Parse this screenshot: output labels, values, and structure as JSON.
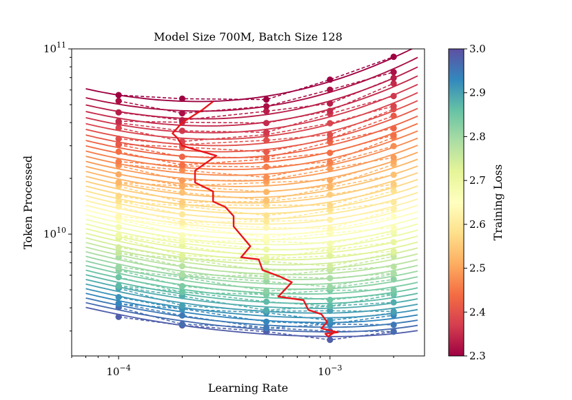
{
  "chart_data": {
    "type": "line",
    "title": "Model Size 700M, Batch Size 128",
    "xlabel": "Learning Rate",
    "ylabel": "Token Processed",
    "xscale": "log",
    "yscale": "log",
    "xlim": [
      6e-05,
      0.0028
    ],
    "ylim": [
      2200000000.0,
      100000000000.0
    ],
    "xticks": [
      {
        "value": 0.0001,
        "base": "10",
        "exp": "−4"
      },
      {
        "value": 0.001,
        "base": "10",
        "exp": "−3"
      }
    ],
    "yticks": [
      {
        "value": 10000000000.0,
        "base": "10",
        "exp": "10"
      },
      {
        "value": 100000000000.0,
        "base": "10",
        "exp": "11"
      }
    ],
    "measured_lr": [
      0.0001,
      0.0002,
      0.0005,
      0.001,
      0.002
    ],
    "curves": {
      "count": 44,
      "loss_range": [
        2.3,
        2.98
      ],
      "token_range_at_min": [
        52000000000.0,
        2800000000.0
      ],
      "lr_optimum_range": [
        0.00024,
        0.0011
      ],
      "fit_lr_range": [
        7e-05,
        0.0026
      ],
      "solid": "fitted loss contours",
      "dashed": "measured loss contours"
    },
    "optimal_path": {
      "color": "#e8151b",
      "lr": [
        0.00028,
        0.00025,
        0.0002,
        0.00018,
        0.00019,
        0.0002,
        0.00029,
        0.00023,
        0.00023,
        0.00028,
        0.00028,
        0.00032,
        0.00035,
        0.00035,
        0.00042,
        0.00038,
        0.00046,
        0.00048,
        0.00058,
        0.00066,
        0.00057,
        0.00075,
        0.00079,
        0.00091,
        0.00097,
        0.00091,
        0.00109,
        0.00095,
        0.00098,
        0.00105
      ],
      "tokens": [
        52000000000.0,
        47000000000.0,
        40000000000.0,
        35000000000.0,
        33000000000.0,
        30000000000.0,
        26500000000.0,
        22000000000.0,
        19000000000.0,
        17000000000.0,
        15000000000.0,
        14000000000.0,
        12500000000.0,
        11000000000.0,
        8600000000.0,
        7500000000.0,
        7300000000.0,
        6400000000.0,
        5900000000.0,
        5500000000.0,
        4600000000.0,
        4400000000.0,
        3900000000.0,
        3700000000.0,
        3350000000.0,
        3100000000.0,
        2950000000.0,
        2900000000.0,
        2800000000.0,
        2950000000.0
      ]
    },
    "colorbar": {
      "label": "Training Loss",
      "colormap": "Spectral",
      "range": [
        2.3,
        3.0
      ],
      "ticks": [
        {
          "value": 2.3,
          "label": "2.3"
        },
        {
          "value": 2.4,
          "label": "2.4"
        },
        {
          "value": 2.5,
          "label": "2.5"
        },
        {
          "value": 2.6,
          "label": "2.6"
        },
        {
          "value": 2.7,
          "label": "2.7"
        },
        {
          "value": 2.8,
          "label": "2.8"
        },
        {
          "value": 2.9,
          "label": "2.9"
        },
        {
          "value": 3.0,
          "label": "3.0"
        }
      ],
      "stops": [
        "#9e0142",
        "#d53e4f",
        "#f46d43",
        "#fdae61",
        "#fee08b",
        "#ffffbf",
        "#e6f598",
        "#abdda4",
        "#66c2a5",
        "#3288bd",
        "#5e4fa2"
      ]
    }
  }
}
